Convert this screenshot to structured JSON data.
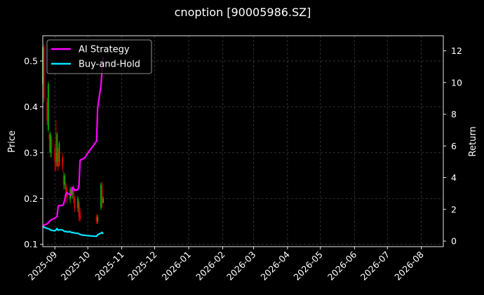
{
  "chart_data": {
    "type": "line",
    "title": "cnoption [90005986.SZ]",
    "ylabel_left": "Price",
    "ylabel_right": "Return",
    "xlim": [
      "2025-08-21",
      "2026-08-21"
    ],
    "ylim_left": [
      0.095,
      0.555
    ],
    "ylim_right": [
      -0.35,
      12.95
    ],
    "x_ticks": [
      "2025-09",
      "2025-10",
      "2025-11",
      "2025-12",
      "2026-01",
      "2026-02",
      "2026-03",
      "2026-04",
      "2026-05",
      "2026-06",
      "2026-07",
      "2026-08"
    ],
    "y_ticks_left": [
      0.1,
      0.2,
      0.3,
      0.4,
      0.5
    ],
    "y_ticks_right": [
      0,
      2,
      4,
      6,
      8,
      10,
      12
    ],
    "grid": true,
    "legend_position": "top-left",
    "colors": {
      "up": "#00b300",
      "down": "#e00000",
      "ai": "#ff00ff",
      "bh": "#00e5ff"
    },
    "series": [
      {
        "name": "AI Strategy",
        "axis": "right",
        "x": [
          "2025-08-21",
          "2025-08-22",
          "2025-08-25",
          "2025-08-26",
          "2025-08-27",
          "2025-08-28",
          "2025-08-29",
          "2025-09-01",
          "2025-09-02",
          "2025-09-03",
          "2025-09-04",
          "2025-09-05",
          "2025-09-08",
          "2025-09-09",
          "2025-09-10",
          "2025-09-11",
          "2025-09-12",
          "2025-09-15",
          "2025-09-16",
          "2025-09-17",
          "2025-09-18",
          "2025-09-19",
          "2025-09-22",
          "2025-09-23",
          "2025-09-24",
          "2025-09-25",
          "2025-09-26",
          "2025-09-29",
          "2025-09-30",
          "2025-10-09",
          "2025-10-10",
          "2025-10-13",
          "2025-10-14",
          "2025-10-15"
        ],
        "values": [
          0.9,
          1.0,
          1.1,
          1.15,
          1.25,
          1.3,
          1.35,
          1.45,
          1.5,
          1.55,
          2.2,
          2.25,
          2.25,
          2.35,
          2.6,
          3.0,
          3.05,
          2.9,
          2.95,
          3.4,
          3.35,
          3.2,
          3.25,
          3.55,
          5.1,
          5.15,
          5.15,
          5.3,
          5.45,
          6.3,
          8.4,
          9.8,
          10.8,
          11.6
        ]
      },
      {
        "name": "Buy-and-Hold",
        "axis": "right",
        "x": [
          "2025-08-21",
          "2025-08-22",
          "2025-08-25",
          "2025-08-26",
          "2025-08-27",
          "2025-08-28",
          "2025-08-29",
          "2025-09-01",
          "2025-09-02",
          "2025-09-03",
          "2025-09-04",
          "2025-09-05",
          "2025-09-08",
          "2025-09-09",
          "2025-09-10",
          "2025-09-11",
          "2025-09-12",
          "2025-09-15",
          "2025-09-16",
          "2025-09-17",
          "2025-09-18",
          "2025-09-19",
          "2025-09-22",
          "2025-09-23",
          "2025-09-24",
          "2025-09-25",
          "2025-09-26",
          "2025-09-29",
          "2025-09-30",
          "2025-10-09",
          "2025-10-10",
          "2025-10-13",
          "2025-10-14",
          "2025-10-15"
        ],
        "values": [
          0.9,
          0.88,
          0.8,
          0.78,
          0.75,
          0.7,
          0.68,
          0.65,
          0.7,
          0.8,
          0.68,
          0.72,
          0.7,
          0.65,
          0.6,
          0.62,
          0.58,
          0.6,
          0.55,
          0.52,
          0.55,
          0.5,
          0.5,
          0.45,
          0.42,
          0.4,
          0.38,
          0.36,
          0.35,
          0.3,
          0.4,
          0.5,
          0.55,
          0.45
        ]
      }
    ],
    "candles": [
      {
        "date": "2025-08-21",
        "open": 0.45,
        "close": 0.53,
        "high": 0.535,
        "low": 0.44
      },
      {
        "date": "2025-08-22",
        "open": 0.53,
        "close": 0.42,
        "high": 0.535,
        "low": 0.41
      },
      {
        "date": "2025-08-25",
        "open": 0.41,
        "close": 0.37,
        "high": 0.42,
        "low": 0.36
      },
      {
        "date": "2025-08-26",
        "open": 0.35,
        "close": 0.45,
        "high": 0.455,
        "low": 0.345
      },
      {
        "date": "2025-08-27",
        "open": 0.34,
        "close": 0.33,
        "high": 0.345,
        "low": 0.3
      },
      {
        "date": "2025-08-28",
        "open": 0.3,
        "close": 0.34,
        "high": 0.345,
        "low": 0.29
      },
      {
        "date": "2025-08-29",
        "open": 0.33,
        "close": 0.31,
        "high": 0.335,
        "low": 0.29
      },
      {
        "date": "2025-09-01",
        "open": 0.31,
        "close": 0.28,
        "high": 0.32,
        "low": 0.26
      },
      {
        "date": "2025-09-02",
        "open": 0.3,
        "close": 0.27,
        "high": 0.37,
        "low": 0.26
      },
      {
        "date": "2025-09-03",
        "open": 0.28,
        "close": 0.34,
        "high": 0.345,
        "low": 0.27
      },
      {
        "date": "2025-09-04",
        "open": 0.3,
        "close": 0.27,
        "high": 0.31,
        "low": 0.26
      },
      {
        "date": "2025-09-05",
        "open": 0.28,
        "close": 0.32,
        "high": 0.325,
        "low": 0.27
      },
      {
        "date": "2025-09-08",
        "open": 0.29,
        "close": 0.27,
        "high": 0.3,
        "low": 0.26
      },
      {
        "date": "2025-09-09",
        "open": 0.25,
        "close": 0.23,
        "high": 0.26,
        "low": 0.22
      },
      {
        "date": "2025-09-10",
        "open": 0.23,
        "close": 0.25,
        "high": 0.255,
        "low": 0.22
      },
      {
        "date": "2025-09-11",
        "open": 0.23,
        "close": 0.22,
        "high": 0.235,
        "low": 0.21
      },
      {
        "date": "2025-09-12",
        "open": 0.22,
        "close": 0.2,
        "high": 0.225,
        "low": 0.19
      },
      {
        "date": "2025-09-15",
        "open": 0.2,
        "close": 0.22,
        "high": 0.225,
        "low": 0.19
      },
      {
        "date": "2025-09-16",
        "open": 0.22,
        "close": 0.21,
        "high": 0.225,
        "low": 0.2
      },
      {
        "date": "2025-09-17",
        "open": 0.21,
        "close": 0.22,
        "high": 0.225,
        "low": 0.2
      },
      {
        "date": "2025-09-18",
        "open": 0.22,
        "close": 0.2,
        "high": 0.23,
        "low": 0.19
      },
      {
        "date": "2025-09-19",
        "open": 0.2,
        "close": 0.18,
        "high": 0.205,
        "low": 0.17
      },
      {
        "date": "2025-09-22",
        "open": 0.18,
        "close": 0.2,
        "high": 0.205,
        "low": 0.17
      },
      {
        "date": "2025-09-23",
        "open": 0.19,
        "close": 0.16,
        "high": 0.195,
        "low": 0.15
      },
      {
        "date": "2025-09-24",
        "open": 0.17,
        "close": 0.155,
        "high": 0.18,
        "low": 0.15
      },
      {
        "date": "2025-10-09",
        "open": 0.16,
        "close": 0.15,
        "high": 0.165,
        "low": 0.145
      },
      {
        "date": "2025-10-10",
        "open": 0.15,
        "close": 0.16,
        "high": 0.165,
        "low": 0.145
      },
      {
        "date": "2025-10-13",
        "open": 0.18,
        "close": 0.23,
        "high": 0.235,
        "low": 0.175
      },
      {
        "date": "2025-10-14",
        "open": 0.22,
        "close": 0.19,
        "high": 0.235,
        "low": 0.18
      },
      {
        "date": "2025-10-15",
        "open": 0.19,
        "close": 0.2,
        "high": 0.205,
        "low": 0.19
      }
    ]
  }
}
